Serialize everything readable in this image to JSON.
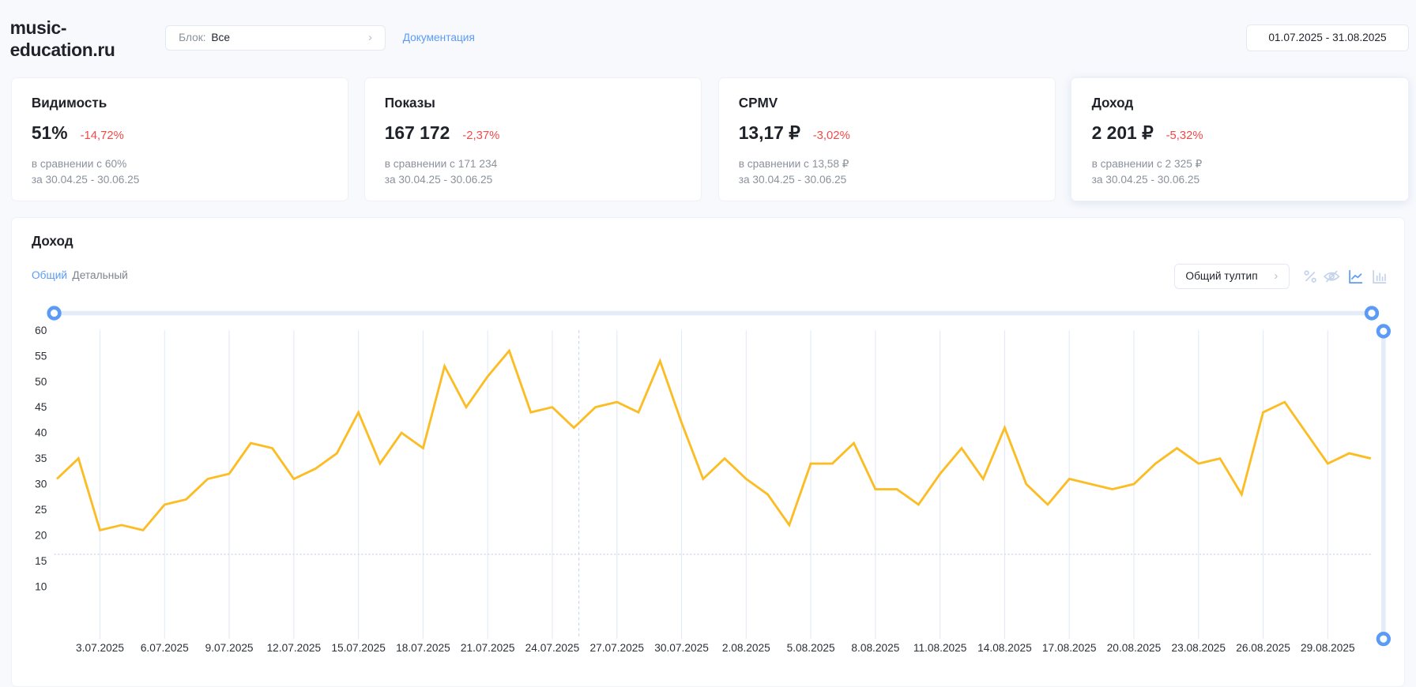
{
  "header": {
    "site_title": "music-education.ru",
    "block_label": "Блок:",
    "block_value": "Все",
    "docs_link": "Документация",
    "date_range": "01.07.2025 - 31.08.2025"
  },
  "kpis": [
    {
      "title": "Видимость",
      "value": "51%",
      "delta": "-14,72%",
      "compare": "в сравнении с 60%",
      "period": "за 30.04.25 - 30.06.25"
    },
    {
      "title": "Показы",
      "value": "167 172",
      "delta": "-2,37%",
      "compare": "в сравнении с 171 234",
      "period": "за 30.04.25 - 30.06.25"
    },
    {
      "title": "CPMV",
      "value": "13,17 ₽",
      "delta": "-3,02%",
      "compare": "в сравнении с 13,58 ₽",
      "period": "за 30.04.25 - 30.06.25"
    },
    {
      "title": "Доход",
      "value": "2 201 ₽",
      "delta": "-5,32%",
      "compare": "в сравнении с 2 325 ₽",
      "period": "за 30.04.25 - 30.06.25"
    }
  ],
  "chart_panel": {
    "title": "Доход",
    "tabs": [
      {
        "label": "Общий",
        "active": true
      },
      {
        "label": "Детальный",
        "active": false
      }
    ],
    "tooltip_mode": "Общий тултип",
    "icons": [
      "percent-icon",
      "eye-off-icon",
      "line-chart-icon",
      "bar-chart-icon"
    ]
  },
  "colors": {
    "accent": "#5b9bf5",
    "line": "#fbbd23",
    "negative": "#f04a4a"
  },
  "chart_data": {
    "type": "line",
    "title": "Доход",
    "xlabel": "",
    "ylabel": "",
    "ylim": [
      0,
      60
    ],
    "yticks": [
      10,
      15,
      20,
      25,
      30,
      35,
      40,
      45,
      50,
      55,
      60
    ],
    "grid": true,
    "reference_line": 16.3,
    "x": [
      "1.07.2025",
      "2.07.2025",
      "3.07.2025",
      "4.07.2025",
      "5.07.2025",
      "6.07.2025",
      "7.07.2025",
      "8.07.2025",
      "9.07.2025",
      "10.07.2025",
      "11.07.2025",
      "12.07.2025",
      "13.07.2025",
      "14.07.2025",
      "15.07.2025",
      "16.07.2025",
      "17.07.2025",
      "18.07.2025",
      "19.07.2025",
      "20.07.2025",
      "21.07.2025",
      "22.07.2025",
      "23.07.2025",
      "24.07.2025",
      "25.07.2025",
      "26.07.2025",
      "27.07.2025",
      "28.07.2025",
      "29.07.2025",
      "30.07.2025",
      "31.07.2025",
      "1.08.2025",
      "2.08.2025",
      "3.08.2025",
      "4.08.2025",
      "5.08.2025",
      "6.08.2025",
      "7.08.2025",
      "8.08.2025",
      "9.08.2025",
      "10.08.2025",
      "11.08.2025",
      "12.08.2025",
      "13.08.2025",
      "14.08.2025",
      "15.08.2025",
      "16.08.2025",
      "17.08.2025",
      "18.08.2025",
      "19.08.2025",
      "20.08.2025",
      "21.08.2025",
      "22.08.2025",
      "23.08.2025",
      "24.08.2025",
      "25.08.2025",
      "26.08.2025",
      "27.08.2025",
      "28.08.2025",
      "29.08.2025",
      "30.08.2025",
      "31.08.2025"
    ],
    "series": [
      {
        "name": "Доход",
        "values": [
          31,
          35,
          21,
          22,
          21,
          26,
          27,
          31,
          32,
          38,
          37,
          31,
          33,
          36,
          44,
          34,
          40,
          37,
          53,
          45,
          51,
          56,
          44,
          45,
          41,
          45,
          46,
          44,
          54,
          42,
          31,
          35,
          31,
          28,
          22,
          34,
          34,
          38,
          29,
          29,
          26,
          32,
          37,
          31,
          41,
          30,
          26,
          31,
          30,
          29,
          30,
          34,
          37,
          34,
          35,
          28,
          44,
          46,
          40,
          34,
          36,
          35
        ]
      }
    ]
  }
}
